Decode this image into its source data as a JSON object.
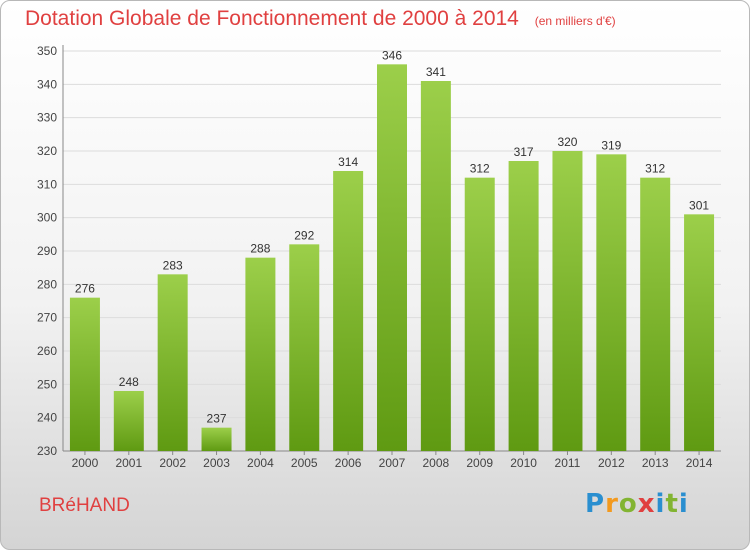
{
  "title": "Dotation Globale de Fonctionnement de 2000 à 2014",
  "unit": "(en milliers d'€)",
  "commune": "BRéHAND",
  "logo": "Proxiti",
  "colors": {
    "title": "#e04040",
    "bar_top": "#9ccf4a",
    "bar_bottom": "#5f9a12",
    "grid": "#dcdcdc"
  },
  "chart_data": {
    "type": "bar",
    "categories": [
      "2000",
      "2001",
      "2002",
      "2003",
      "2004",
      "2005",
      "2006",
      "2007",
      "2008",
      "2009",
      "2010",
      "2011",
      "2012",
      "2013",
      "2014"
    ],
    "values": [
      276,
      248,
      283,
      237,
      288,
      292,
      314,
      346,
      341,
      312,
      317,
      320,
      319,
      312,
      301
    ],
    "ylim": [
      230,
      350
    ],
    "yticks": [
      230,
      240,
      250,
      260,
      270,
      280,
      290,
      300,
      310,
      320,
      330,
      340,
      350
    ],
    "grid": true,
    "xlabel": "",
    "ylabel": ""
  }
}
